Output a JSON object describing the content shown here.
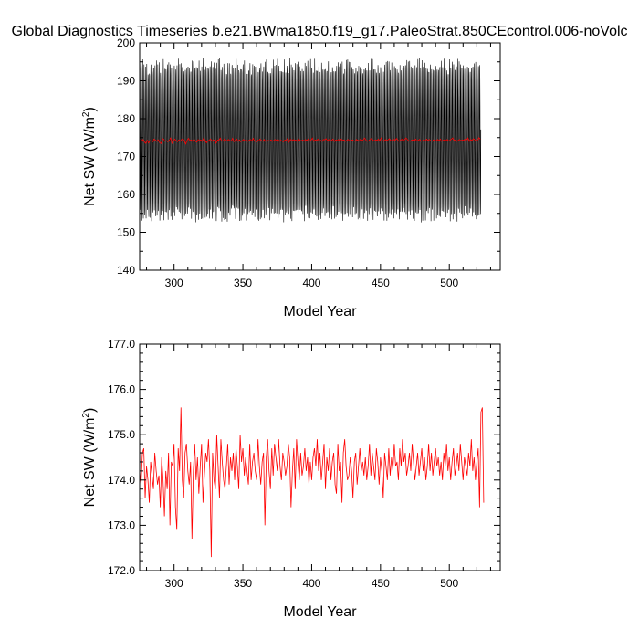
{
  "title": "Global Diagnostics Timeseries b.e21.BWma1850.f19_g17.PaleoStrat.850CEcontrol.006-noVolc",
  "chart_data": [
    {
      "type": "line",
      "xlabel": "Model Year",
      "ylabel_main": "Net SW (W/m",
      "ylabel_sup": "2",
      "ylabel_close": ")",
      "xlim": [
        275,
        537
      ],
      "ylim": [
        140,
        200
      ],
      "xticks": [
        300,
        350,
        400,
        450,
        500
      ],
      "xtick_labels": [
        "300",
        "350",
        "400",
        "450",
        "500"
      ],
      "yticks": [
        140,
        150,
        160,
        170,
        180,
        190,
        200
      ],
      "ytick_labels": [
        "140",
        "150",
        "160",
        "170",
        "180",
        "190",
        "200"
      ],
      "series": [
        {
          "color": "#000000",
          "kind": "monthly",
          "annual_mean": [
            174.6,
            174.1,
            174.5,
            173.8,
            173.5,
            174.3,
            173.6,
            174.2,
            174.1,
            173.9,
            174.6,
            174.3,
            174.0,
            174.4,
            173.7,
            173.4,
            174.8,
            174.5,
            174.0,
            174.2,
            173.9,
            174.3,
            174.9,
            173.5,
            174.1,
            174.6,
            174.2,
            173.9,
            174.4,
            174.0,
            174.5,
            174.7,
            174.1,
            173.3,
            174.3,
            174.8,
            174.2,
            174.4,
            174.0,
            174.6,
            174.1,
            173.8,
            174.5,
            174.2,
            174.4,
            174.0,
            174.9,
            174.3,
            173.6,
            174.1,
            174.3,
            174.6,
            174.0,
            174.4,
            174.2,
            173.5,
            174.4,
            174.3,
            174.9,
            174.2,
            174.0,
            174.6,
            174.3,
            174.1,
            174.5,
            174.2,
            174.1,
            174.8,
            173.9,
            174.3,
            174.6,
            174.0,
            174.4,
            173.9,
            174.2,
            174.5,
            174.1,
            174.4,
            174.0,
            174.3,
            174.5,
            174.1,
            174.8,
            174.2,
            173.9,
            174.4,
            174.1,
            174.6,
            174.2,
            174.0,
            174.5,
            174.0,
            174.3,
            174.2,
            174.1,
            174.4,
            174.0,
            174.3,
            174.5,
            174.2,
            174.6,
            174.0,
            174.3,
            174.1,
            173.9,
            174.4,
            174.2,
            174.8,
            173.8,
            174.6,
            174.1,
            174.5,
            174.2,
            174.4,
            174.0,
            174.7,
            174.3,
            174.1,
            174.4,
            174.0,
            174.5,
            174.2,
            174.6,
            174.1,
            174.3,
            174.9,
            174.0,
            174.4,
            174.2,
            174.6,
            174.1,
            174.3,
            174.0,
            174.5,
            174.4,
            174.7,
            174.2,
            174.5,
            174.1,
            174.3,
            174.6,
            174.0,
            174.4,
            174.2,
            174.5,
            174.1,
            174.6,
            174.2,
            174.4,
            174.0,
            174.3,
            174.5,
            174.2,
            174.1,
            174.4,
            174.2,
            174.0,
            174.5,
            174.3,
            174.1,
            174.6,
            174.2,
            174.4,
            174.9,
            174.3,
            174.0,
            174.2,
            174.5,
            174.8,
            174.3,
            174.1,
            174.4,
            174.2,
            174.6,
            174.1,
            174.9,
            174.3,
            174.0,
            174.5,
            174.2,
            174.4,
            174.7,
            174.1,
            174.3,
            174.6,
            174.2,
            174.8,
            174.4,
            174.0,
            174.3,
            174.6,
            174.1,
            174.4,
            174.9,
            174.5,
            174.2,
            174.0,
            174.3,
            174.4,
            174.2,
            174.6,
            174.1,
            174.3,
            174.5,
            174.0,
            174.2,
            174.4,
            174.1,
            174.6,
            174.3,
            174.5,
            174.2,
            174.0,
            174.4,
            174.3,
            174.1,
            174.5,
            174.2,
            174.6,
            174.0,
            174.3,
            174.4,
            174.2,
            174.5,
            174.1,
            174.3,
            174.6,
            174.9,
            174.2,
            174.4,
            174.0,
            174.3,
            174.5,
            174.1,
            174.4,
            174.2,
            174.6,
            174.3,
            174.9,
            174.0,
            174.5,
            174.2,
            174.7,
            174.4,
            174.1,
            174.3,
            175.0,
            174.5
          ],
          "seasonal_amplitude": 19.5,
          "noise": 2.0
        },
        {
          "color": "#ff0000",
          "kind": "annual",
          "values": "same_as_annual_mean"
        }
      ]
    },
    {
      "type": "line",
      "xlabel": "Model Year",
      "ylabel_main": "Net SW (W/m",
      "ylabel_sup": "2",
      "ylabel_close": ")",
      "xlim": [
        275,
        537
      ],
      "ylim": [
        172.0,
        177.0
      ],
      "xticks": [
        300,
        350,
        400,
        450,
        500
      ],
      "xtick_labels": [
        "300",
        "350",
        "400",
        "450",
        "500"
      ],
      "yticks": [
        172,
        173,
        174,
        175,
        176,
        177
      ],
      "ytick_labels": [
        "172.0",
        "173.0",
        "174.0",
        "175.0",
        "176.0",
        "177.0"
      ],
      "series": [
        {
          "color": "#ff0000",
          "x_start": 275,
          "values": [
            174.2,
            173.9,
            174.6,
            174.7,
            173.6,
            174.3,
            174.0,
            173.5,
            174.4,
            174.1,
            173.8,
            174.6,
            174.2,
            173.9,
            174.1,
            173.4,
            174.5,
            174.0,
            173.2,
            174.2,
            173.8,
            174.6,
            173.0,
            174.4,
            174.3,
            174.8,
            173.4,
            172.9,
            174.7,
            174.2,
            175.6,
            174.0,
            173.6,
            174.6,
            174.8,
            174.2,
            173.9,
            174.4,
            172.7,
            174.2,
            174.8,
            174.0,
            174.5,
            173.7,
            174.3,
            174.8,
            173.5,
            174.1,
            174.6,
            174.4,
            174.9,
            174.2,
            172.3,
            174.6,
            174.0,
            173.8,
            175.0,
            174.3,
            173.6,
            174.9,
            174.4,
            174.0,
            173.8,
            174.3,
            174.8,
            173.9,
            174.5,
            174.2,
            174.6,
            174.0,
            174.7,
            174.3,
            173.8,
            175.0,
            174.4,
            174.7,
            174.1,
            174.5,
            174.2,
            173.9,
            174.8,
            174.0,
            174.4,
            174.6,
            174.2,
            174.0,
            174.9,
            174.3,
            173.9,
            174.4,
            174.6,
            173.0,
            174.5,
            174.9,
            174.2,
            173.8,
            174.7,
            174.1,
            174.8,
            174.5,
            174.2,
            174.9,
            174.3,
            174.0,
            174.6,
            174.4,
            174.1,
            174.3,
            174.8,
            174.5,
            173.4,
            174.2,
            174.7,
            173.8,
            174.9,
            174.4,
            174.0,
            174.6,
            174.1,
            174.3,
            174.7,
            174.2,
            174.5,
            173.9,
            174.4,
            174.0,
            174.5,
            174.7,
            174.3,
            174.9,
            174.2,
            174.6,
            174.0,
            174.4,
            174.8,
            173.8,
            174.5,
            174.2,
            174.7,
            174.0,
            174.4,
            174.6,
            173.9,
            173.7,
            174.8,
            174.2,
            174.4,
            173.5,
            174.6,
            174.9,
            174.3,
            174.0,
            174.1,
            174.5,
            174.2,
            173.6,
            174.4,
            174.6,
            173.9,
            174.3,
            174.7,
            174.2,
            174.4,
            174.1,
            174.5,
            174.0,
            174.3,
            174.8,
            174.1,
            174.6,
            174.3,
            174.0,
            174.7,
            174.4,
            173.9,
            174.5,
            174.2,
            173.6,
            174.6,
            174.3,
            174.0,
            174.7,
            174.1,
            174.5,
            174.2,
            174.8,
            174.3,
            174.4,
            174.0,
            174.7,
            174.3,
            174.9,
            174.4,
            174.6,
            174.1,
            174.3,
            174.6,
            174.2,
            174.8,
            174.4,
            174.0,
            174.3,
            174.6,
            174.1,
            174.4,
            174.7,
            174.2,
            174.5,
            174.0,
            174.3,
            174.8,
            174.2,
            174.6,
            174.1,
            174.4,
            174.7,
            174.3,
            174.5,
            174.1,
            174.4,
            174.0,
            174.6,
            174.3,
            174.8,
            174.2,
            174.5,
            174.0,
            174.4,
            174.7,
            174.1,
            174.3,
            174.6,
            174.2,
            174.8,
            174.4,
            174.0,
            174.5,
            174.3,
            174.1,
            174.6,
            174.3,
            174.9,
            174.2,
            174.5,
            174.0,
            174.4,
            174.7,
            173.4,
            175.5,
            175.6,
            173.5
          ]
        }
      ]
    }
  ]
}
